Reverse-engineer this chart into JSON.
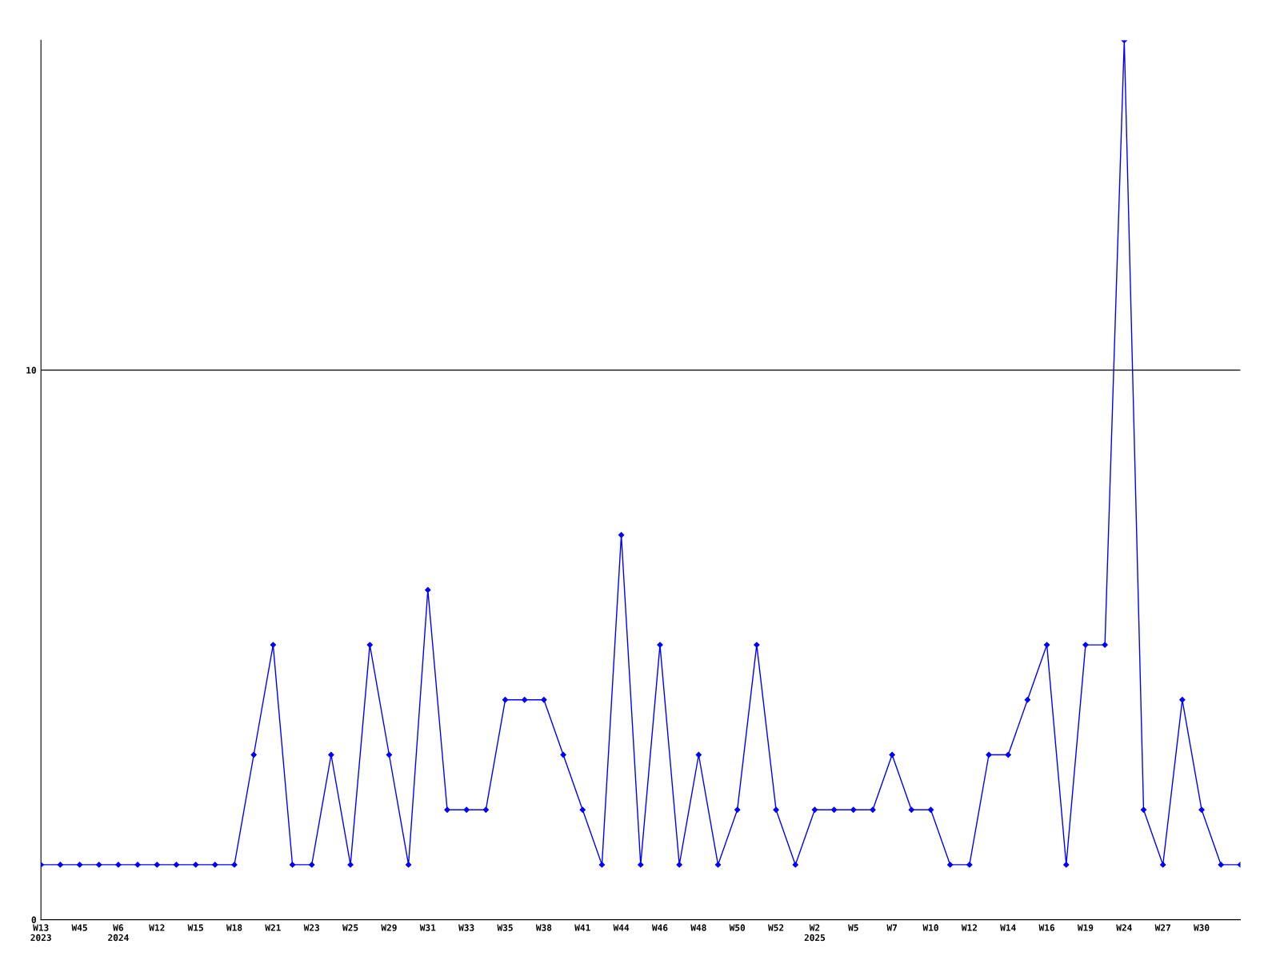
{
  "chart_data": {
    "type": "line",
    "categories": [
      "W13\n2023",
      null,
      "W45",
      null,
      "W6\n2024",
      null,
      "W12",
      null,
      "W15",
      null,
      "W18",
      null,
      "W21",
      null,
      "W23",
      null,
      "W25",
      null,
      "W29",
      null,
      "W31",
      null,
      "W33",
      null,
      "W35",
      null,
      "W38",
      null,
      "W41",
      null,
      "W44",
      null,
      "W46",
      null,
      "W48",
      null,
      "W50",
      null,
      "W52",
      null,
      "W2\n2025",
      null,
      "W5",
      null,
      "W7",
      null,
      "W10",
      null,
      "W12",
      null,
      "W14",
      null,
      "W16",
      null,
      "W19",
      null,
      "W24",
      null,
      "W27",
      null,
      "W30",
      null,
      null
    ],
    "series": [
      {
        "color": "#0000ff",
        "values": [
          1,
          1,
          1,
          1,
          1,
          1,
          1,
          1,
          1,
          1,
          1,
          3,
          5,
          1,
          1,
          3,
          1,
          5,
          3,
          1,
          6,
          2,
          2,
          2,
          4,
          4,
          4,
          3,
          2,
          1,
          7,
          1,
          5,
          1,
          3,
          1,
          2,
          5,
          2,
          1,
          2,
          2,
          2,
          2,
          3,
          2,
          2,
          1,
          1,
          3,
          3,
          4,
          5,
          1,
          5,
          5,
          16,
          2,
          1,
          4,
          2,
          1,
          1
        ]
      }
    ],
    "ylim": [
      0,
      16
    ],
    "yticks": [
      0,
      10
    ],
    "grid": "y",
    "marker": "diamond",
    "line_style": "solid",
    "legend": false
  }
}
